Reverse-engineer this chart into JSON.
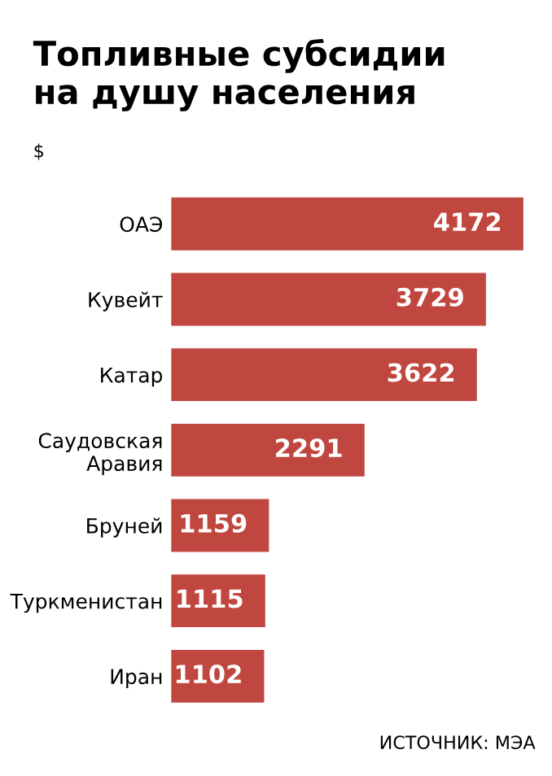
{
  "chart_data": {
    "type": "bar",
    "orientation": "horizontal",
    "title": "Топливные субсидии\nна душу населения",
    "subtitle": "$",
    "categories": [
      "ОАЭ",
      "Кувейт",
      "Катар",
      "Саудовская\nАравия",
      "Бруней",
      "Туркменистан",
      "Иран"
    ],
    "values": [
      4172,
      3729,
      3622,
      2291,
      1159,
      1115,
      1102
    ],
    "color": "#c0473f",
    "data_labels": true,
    "tick_labels": "y",
    "annotations": [
      "ИСТОЧНИК: МЭА"
    ]
  }
}
